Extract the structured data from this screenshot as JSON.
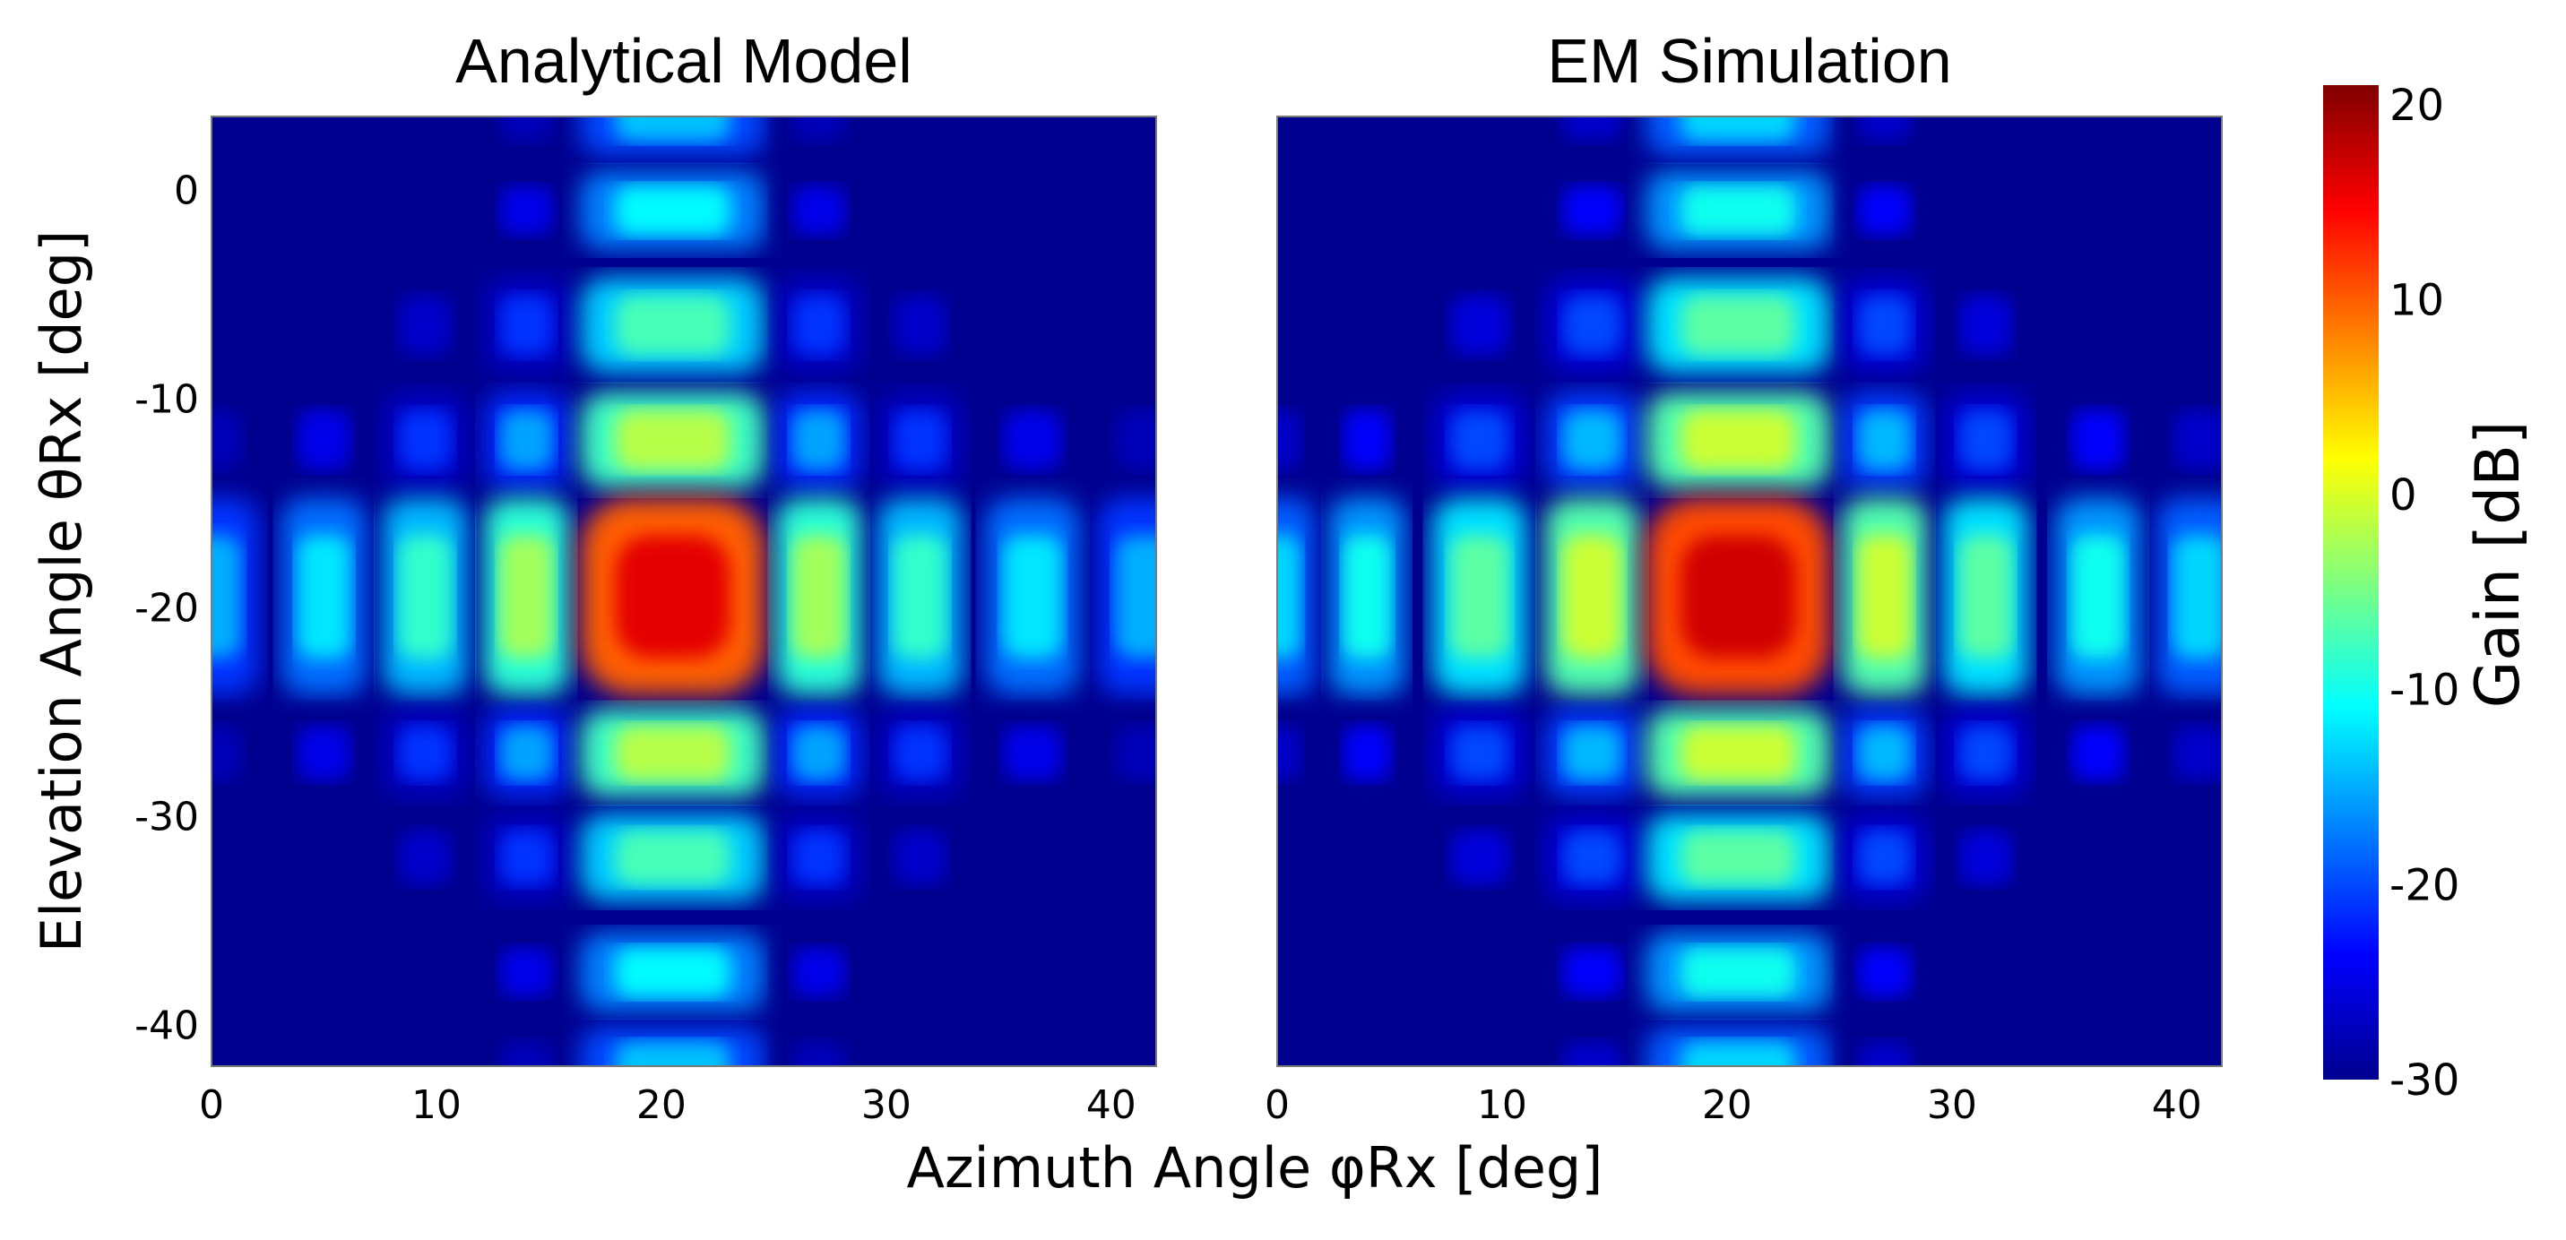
{
  "chart_data": [
    {
      "type": "heatmap",
      "title": "Analytical Model",
      "xlabel": "Azimuth Angle φRx [deg]",
      "ylabel": "Elevation Angle θRx [deg]",
      "xlim": [
        0,
        42
      ],
      "ylim": [
        -42,
        3.5
      ],
      "xticks": [
        "0",
        "10",
        "20",
        "30",
        "40"
      ],
      "yticks": [
        "0",
        "-10",
        "-20",
        "-30",
        "-40"
      ],
      "peak": {
        "azimuth": 20.5,
        "elevation": -19.5,
        "gain_db": 16
      },
      "lobes_azimuth": [
        0,
        5,
        9.5,
        14,
        20.5,
        27,
        31.5,
        36.5,
        41.5
      ],
      "lobes_elevation": [
        3.5,
        -1,
        -6.5,
        -12,
        -19.5,
        -27,
        -32,
        -37.5,
        -42
      ],
      "colormap": "jet"
    },
    {
      "type": "heatmap",
      "title": "EM Simulation",
      "xlim": [
        0,
        42
      ],
      "ylim": [
        -42,
        3.5
      ],
      "xticks": [
        "0",
        "10",
        "20",
        "30",
        "40"
      ],
      "peak": {
        "azimuth": 20.5,
        "elevation": -19.5,
        "gain_db": 17
      },
      "lobes_azimuth": [
        0,
        4,
        9,
        14,
        20.5,
        27,
        31.5,
        36.5,
        41
      ],
      "lobes_elevation": [
        3.5,
        -1,
        -6.5,
        -12,
        -19.5,
        -27,
        -32,
        -37.5,
        -42
      ],
      "colormap": "jet"
    }
  ],
  "colorbar": {
    "label": "Gain [dB]",
    "min": -30,
    "max": 21,
    "ticks": [
      "20",
      "10",
      "0",
      "-10",
      "-20",
      "-30"
    ],
    "colors": [
      "#00008f",
      "#0000ff",
      "#00ffff",
      "#ffff00",
      "#ff0000",
      "#800000"
    ]
  }
}
